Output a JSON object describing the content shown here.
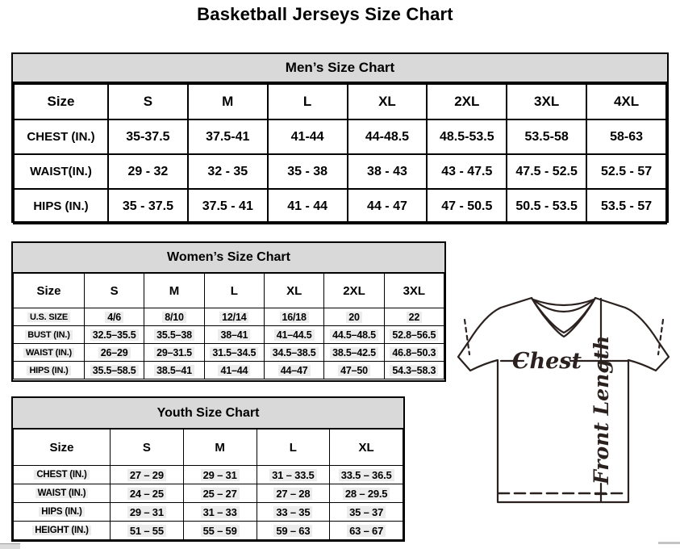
{
  "page_title": "Basketball Jerseys Size Chart",
  "colors": {
    "table_header_bg": "#d9d9d9",
    "table_border": "#000000",
    "diagram_line": "#2b2220",
    "value_highlight": "#ececec"
  },
  "tables": {
    "men": {
      "title": "Men’s Size Chart",
      "header": [
        "Size",
        "S",
        "M",
        "L",
        "XL",
        "2XL",
        "3XL",
        "4XL"
      ],
      "rows": [
        {
          "label": "CHEST (IN.)",
          "values": [
            "35-37.5",
            "37.5-41",
            "41-44",
            "44-48.5",
            "48.5-53.5",
            "53.5-58",
            "58-63"
          ]
        },
        {
          "label": "WAIST(IN.)",
          "values": [
            "29 - 32",
            "32 - 35",
            "35 - 38",
            "38 - 43",
            "43 - 47.5",
            "47.5 - 52.5",
            "52.5 - 57"
          ]
        },
        {
          "label": "HIPS (IN.)",
          "values": [
            "35 - 37.5",
            "37.5 - 41",
            "41 - 44",
            "44 - 47",
            "47 - 50.5",
            "50.5 - 53.5",
            "53.5 - 57"
          ]
        }
      ]
    },
    "women": {
      "title": "Women’s Size Chart",
      "header": [
        "Size",
        "S",
        "M",
        "L",
        "XL",
        "2XL",
        "3XL"
      ],
      "rows": [
        {
          "label": "U.S. SIZE",
          "values": [
            "4/6",
            "8/10",
            "12/14",
            "16/18",
            "20",
            "22"
          ]
        },
        {
          "label": "BUST (IN.)",
          "values": [
            "32.5–35.5",
            "35.5–38",
            "38–41",
            "41–44.5",
            "44.5–48.5",
            "52.8–56.5"
          ]
        },
        {
          "label": "WAIST (IN.)",
          "values": [
            "26–29",
            "29–31.5",
            "31.5–34.5",
            "34.5–38.5",
            "38.5–42.5",
            "46.8–50.3"
          ]
        },
        {
          "label": "HIPS (IN.)",
          "values": [
            "35.5–58.5",
            "38.5–41",
            "41–44",
            "44–47",
            "47–50",
            "54.3–58.3"
          ]
        }
      ]
    },
    "youth": {
      "title": "Youth Size Chart",
      "header": [
        "Size",
        "S",
        "M",
        "L",
        "XL"
      ],
      "rows": [
        {
          "label": "CHEST (IN.)",
          "values": [
            "27 – 29",
            "29 – 31",
            "31 – 33.5",
            "33.5 – 36.5"
          ]
        },
        {
          "label": "WAIST (IN.)",
          "values": [
            "24 – 25",
            "25 – 27",
            "27 – 28",
            "28 – 29.5"
          ]
        },
        {
          "label": "HIPS (IN.)",
          "values": [
            "29 – 31",
            "31 – 33",
            "33 – 35",
            "35 – 37"
          ]
        },
        {
          "label": "HEIGHT (IN.)",
          "values": [
            "51 – 55",
            "55 – 59",
            "59 – 63",
            "63 – 67"
          ]
        }
      ]
    }
  },
  "diagram": {
    "chest_label": "Chest",
    "front_length_label": "Front Length"
  }
}
